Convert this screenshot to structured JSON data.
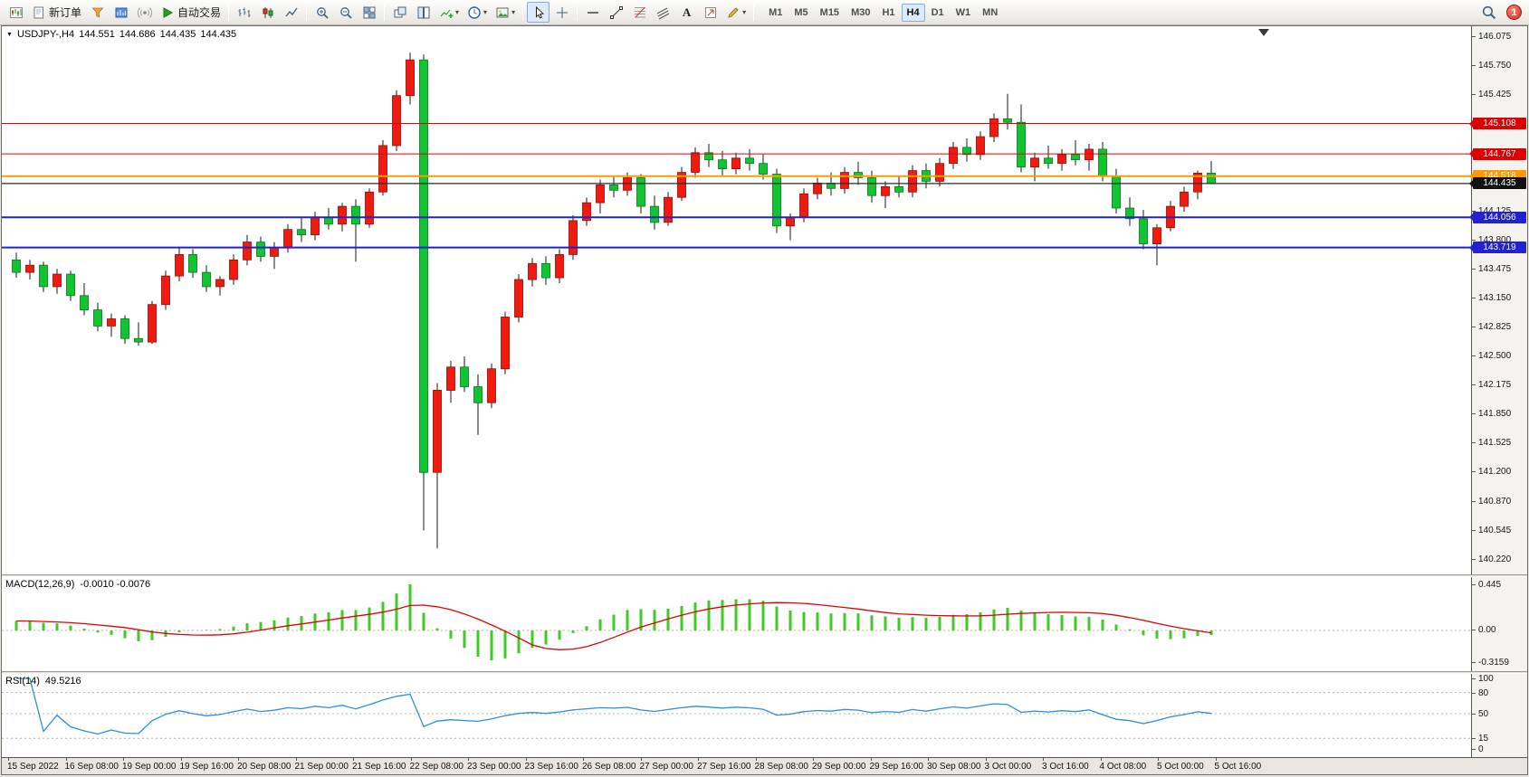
{
  "toolbar": {
    "new_order_label": "新订单",
    "auto_trading_label": "自动交易",
    "text_tool_label": "A",
    "timeframes": [
      "M1",
      "M5",
      "M15",
      "M30",
      "H1",
      "H4",
      "D1",
      "W1",
      "MN"
    ],
    "active_timeframe": "H4",
    "notification_count": "1"
  },
  "chart_data": {
    "type": "candlestick",
    "symbol_period": "USDJPY-,H4",
    "ohlc": {
      "open": "144.551",
      "high": "144.686",
      "low": "144.435",
      "close": "144.435"
    },
    "y_range": {
      "min": 140.22,
      "max": 146.075
    },
    "price_ticks": [
      "146.075",
      "145.750",
      "145.425",
      "144.125",
      "143.800",
      "143.475",
      "143.150",
      "142.825",
      "142.500",
      "142.175",
      "141.850",
      "141.525",
      "141.200",
      "140.870",
      "140.545",
      "140.220"
    ],
    "hlines": [
      {
        "price": 145.108,
        "label": "145.108",
        "color": "#e00000",
        "badge_bg": "#dd0000",
        "width": 1
      },
      {
        "price": 144.767,
        "label": "144.767",
        "color": "#e00000",
        "badge_bg": "#dd0000",
        "width": 1
      },
      {
        "price": 144.518,
        "label": "144.518",
        "color": "#ff9a00",
        "badge_bg": "#ff9a00",
        "width": 2
      },
      {
        "price": 144.056,
        "label": "144.056",
        "color": "#2121cf",
        "badge_bg": "#2121cf",
        "width": 2
      },
      {
        "price": 143.719,
        "label": "143.719",
        "color": "#2121cf",
        "badge_bg": "#2121cf",
        "width": 2
      },
      {
        "price": 144.435,
        "label": "144.435",
        "color": "#2b2b2b",
        "badge_bg": "#111111",
        "width": 1.2
      }
    ],
    "candles": [
      [
        143.58,
        143.66,
        143.38,
        143.44
      ],
      [
        143.44,
        143.58,
        143.36,
        143.52
      ],
      [
        143.52,
        143.56,
        143.22,
        143.28
      ],
      [
        143.28,
        143.48,
        143.2,
        143.42
      ],
      [
        143.42,
        143.46,
        143.12,
        143.18
      ],
      [
        143.18,
        143.32,
        142.96,
        143.02
      ],
      [
        143.02,
        143.1,
        142.78,
        142.84
      ],
      [
        142.84,
        142.98,
        142.72,
        142.92
      ],
      [
        142.92,
        142.96,
        142.64,
        142.7
      ],
      [
        142.7,
        142.88,
        142.62,
        142.66
      ],
      [
        142.66,
        143.12,
        142.64,
        143.08
      ],
      [
        143.08,
        143.46,
        143.02,
        143.4
      ],
      [
        143.4,
        143.72,
        143.34,
        143.64
      ],
      [
        143.64,
        143.7,
        143.38,
        143.44
      ],
      [
        143.44,
        143.52,
        143.22,
        143.28
      ],
      [
        143.28,
        143.4,
        143.18,
        143.36
      ],
      [
        143.36,
        143.64,
        143.3,
        143.58
      ],
      [
        143.58,
        143.86,
        143.52,
        143.78
      ],
      [
        143.78,
        143.84,
        143.56,
        143.62
      ],
      [
        143.62,
        143.78,
        143.48,
        143.72
      ],
      [
        143.72,
        143.98,
        143.66,
        143.92
      ],
      [
        143.92,
        144.06,
        143.78,
        143.86
      ],
      [
        143.86,
        144.12,
        143.8,
        144.06
      ],
      [
        144.06,
        144.16,
        143.92,
        143.98
      ],
      [
        143.98,
        144.22,
        143.9,
        144.18
      ],
      [
        144.18,
        144.26,
        143.56,
        143.98
      ],
      [
        143.98,
        144.38,
        143.94,
        144.34
      ],
      [
        144.34,
        144.92,
        144.3,
        144.86
      ],
      [
        144.86,
        145.48,
        144.8,
        145.42
      ],
      [
        145.42,
        145.9,
        145.32,
        145.82
      ],
      [
        145.82,
        145.88,
        140.55,
        141.2
      ],
      [
        141.2,
        142.2,
        140.35,
        142.12
      ],
      [
        142.12,
        142.45,
        141.98,
        142.38
      ],
      [
        142.38,
        142.5,
        142.1,
        142.16
      ],
      [
        142.16,
        142.3,
        141.62,
        141.98
      ],
      [
        141.98,
        142.42,
        141.92,
        142.36
      ],
      [
        142.36,
        143.0,
        142.3,
        142.94
      ],
      [
        142.94,
        143.42,
        142.88,
        143.36
      ],
      [
        143.36,
        143.6,
        143.28,
        143.54
      ],
      [
        143.54,
        143.62,
        143.3,
        143.38
      ],
      [
        143.38,
        143.7,
        143.32,
        143.64
      ],
      [
        143.64,
        144.08,
        143.58,
        144.02
      ],
      [
        144.02,
        144.28,
        143.96,
        144.22
      ],
      [
        144.22,
        144.48,
        144.1,
        144.42
      ],
      [
        144.42,
        144.52,
        144.28,
        144.36
      ],
      [
        144.36,
        144.56,
        144.3,
        144.5
      ],
      [
        144.5,
        144.54,
        144.1,
        144.18
      ],
      [
        144.18,
        144.3,
        143.92,
        144.0
      ],
      [
        144.0,
        144.34,
        143.96,
        144.28
      ],
      [
        144.28,
        144.62,
        144.24,
        144.56
      ],
      [
        144.56,
        144.84,
        144.5,
        144.78
      ],
      [
        144.78,
        144.88,
        144.62,
        144.7
      ],
      [
        144.7,
        144.8,
        144.52,
        144.6
      ],
      [
        144.6,
        144.78,
        144.54,
        144.72
      ],
      [
        144.72,
        144.82,
        144.58,
        144.66
      ],
      [
        144.66,
        144.76,
        144.48,
        144.54
      ],
      [
        144.54,
        144.6,
        143.88,
        143.96
      ],
      [
        143.96,
        144.1,
        143.8,
        144.06
      ],
      [
        144.06,
        144.38,
        144.0,
        144.32
      ],
      [
        144.32,
        144.5,
        144.26,
        144.44
      ],
      [
        144.44,
        144.56,
        144.3,
        144.38
      ],
      [
        144.38,
        144.62,
        144.32,
        144.56
      ],
      [
        144.56,
        144.68,
        144.42,
        144.5
      ],
      [
        144.5,
        144.58,
        144.22,
        144.3
      ],
      [
        144.3,
        144.46,
        144.16,
        144.4
      ],
      [
        144.4,
        144.52,
        144.28,
        144.34
      ],
      [
        144.34,
        144.64,
        144.28,
        144.58
      ],
      [
        144.58,
        144.66,
        144.38,
        144.46
      ],
      [
        144.46,
        144.72,
        144.4,
        144.66
      ],
      [
        144.66,
        144.9,
        144.6,
        144.84
      ],
      [
        144.84,
        144.94,
        144.68,
        144.76
      ],
      [
        144.76,
        145.02,
        144.7,
        144.96
      ],
      [
        144.96,
        145.22,
        144.9,
        145.16
      ],
      [
        145.16,
        145.44,
        145.04,
        145.12
      ],
      [
        145.12,
        145.32,
        144.56,
        144.62
      ],
      [
        144.62,
        144.78,
        144.46,
        144.72
      ],
      [
        144.72,
        144.86,
        144.6,
        144.66
      ],
      [
        144.66,
        144.82,
        144.58,
        144.76
      ],
      [
        144.76,
        144.92,
        144.64,
        144.7
      ],
      [
        144.7,
        144.88,
        144.58,
        144.82
      ],
      [
        144.82,
        144.9,
        144.46,
        144.52
      ],
      [
        144.52,
        144.6,
        144.1,
        144.16
      ],
      [
        144.16,
        144.28,
        143.96,
        144.04
      ],
      [
        144.04,
        144.14,
        143.7,
        143.76
      ],
      [
        143.76,
        143.98,
        143.52,
        143.94
      ],
      [
        143.94,
        144.24,
        143.9,
        144.18
      ],
      [
        144.18,
        144.4,
        144.12,
        144.34
      ],
      [
        144.34,
        144.58,
        144.26,
        144.551
      ],
      [
        144.551,
        144.686,
        144.435,
        144.435
      ]
    ],
    "macd": {
      "title": "MACD(12,26,9)",
      "values_text": "-0.0010 -0.0076",
      "fast": 12,
      "slow": 26,
      "signal": 9,
      "axis_labels": [
        "0.445",
        "0.00",
        "-0.3159"
      ]
    },
    "rsi": {
      "title": "RSI(14)",
      "value_text": "49.5216",
      "period": 14,
      "axis_labels": [
        "100",
        "80",
        "50",
        "15",
        "0"
      ],
      "levels": [
        80,
        50,
        15
      ]
    },
    "time_labels": [
      "15 Sep 2022",
      "16 Sep 08:00",
      "19 Sep 00:00",
      "19 Sep 16:00",
      "20 Sep 08:00",
      "21 Sep 00:00",
      "21 Sep 16:00",
      "22 Sep 08:00",
      "23 Sep 00:00",
      "23 Sep 16:00",
      "26 Sep 08:00",
      "27 Sep 00:00",
      "27 Sep 16:00",
      "28 Sep 08:00",
      "29 Sep 00:00",
      "29 Sep 16:00",
      "30 Sep 08:00",
      "3 Oct 00:00",
      "3 Oct 16:00",
      "4 Oct 08:00",
      "5 Oct 00:00",
      "5 Oct 16:00"
    ],
    "colors": {
      "bull": "#f21a0e",
      "bear": "#10c52f",
      "bull_stroke": "#8f0d06",
      "bear_stroke": "#08751c",
      "wick": "#1a1a1a",
      "macd_hist": "#3ecb26",
      "macd_signal": "#e60000",
      "rsi_line": "#2a8fdd"
    }
  }
}
